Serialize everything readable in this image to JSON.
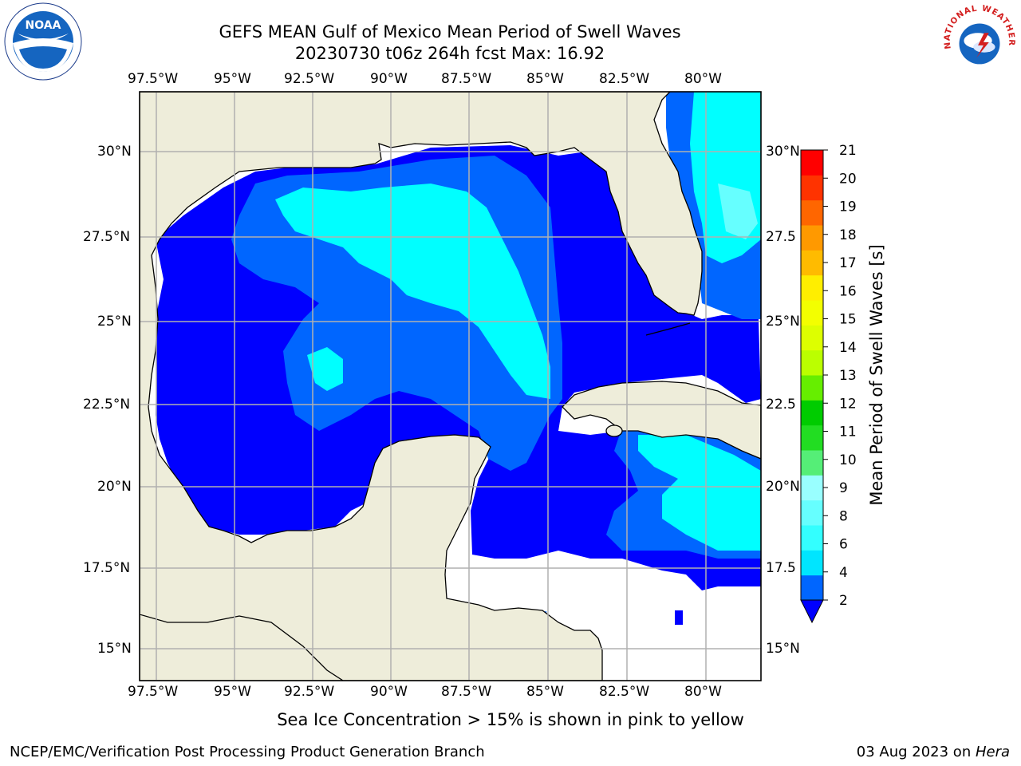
{
  "title": {
    "line1": "GEFS MEAN Gulf of Mexico Mean Period of Swell Waves",
    "line2": "20230730 t06z 264h fcst   Max: 16.92"
  },
  "logos": {
    "left": {
      "icon": "noaa-logo",
      "text": "NOAA"
    },
    "right": {
      "icon": "national-weather-service-logo",
      "text": "NATIONAL WEATHER SERVICE"
    }
  },
  "map": {
    "lon_labels": [
      "97.5°W",
      "95°W",
      "92.5°W",
      "90°W",
      "87.5°W",
      "85°W",
      "82.5°W",
      "80°W"
    ],
    "lat_labels_left": [
      "30°N",
      "27.5°N",
      "25°N",
      "22.5°N",
      "20°N",
      "17.5°N",
      "15°N"
    ],
    "lat_labels_right": [
      "30°N",
      "27.5",
      "25°N",
      "22.5",
      "20°N",
      "17.5",
      "15°N"
    ],
    "land_color": "#eeedda",
    "ocean_no_data_color": "#ffffff",
    "grid_color": "#b0b0b0"
  },
  "colorbar": {
    "label": "Mean Period of Swell Waves [s]",
    "ticks": [
      "21",
      "20",
      "19",
      "18",
      "17",
      "16",
      "15",
      "14",
      "13",
      "12",
      "11",
      "10",
      "9",
      "8",
      "6",
      "4",
      "2"
    ],
    "colors_bottom_to_top": [
      "#0066ff",
      "#00e5ff",
      "#33ffff",
      "#66ffff",
      "#99ffff",
      "#55ee77",
      "#22dd22",
      "#00cc00",
      "#66ee00",
      "#bbff00",
      "#ddff00",
      "#f3ff00",
      "#ffee00",
      "#ffbb00",
      "#ff9900",
      "#ff6600",
      "#ff3300",
      "#ff0000"
    ],
    "extend_color": "#0000ff"
  },
  "caption": "Sea Ice Concentration > 15% is shown in pink to yellow",
  "footer": {
    "left": "NCEP/EMC/Verification Post Processing Product Generation Branch",
    "right_date": "03 Aug 2023 on ",
    "right_host": "Hera"
  }
}
